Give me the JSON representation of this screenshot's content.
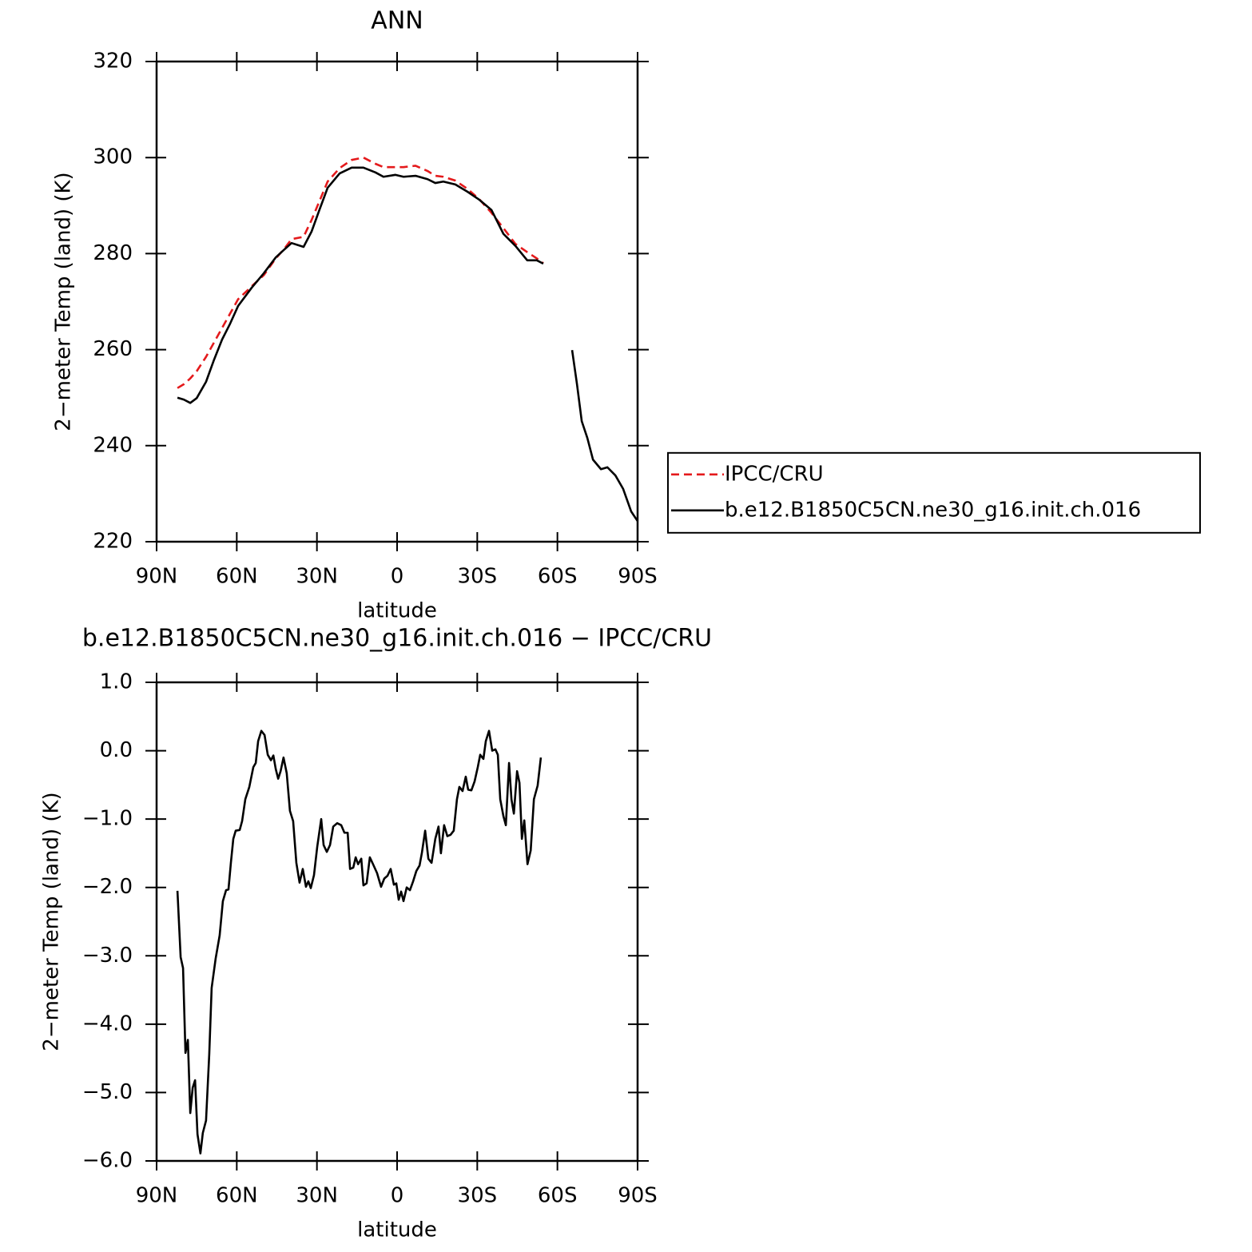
{
  "chart_data": [
    {
      "type": "line",
      "title": "ANN",
      "xlabel": "latitude",
      "ylabel": "2−meter Temp (land) (K)",
      "x": [
        82.2,
        79.8,
        77.4,
        75.0,
        71.5,
        68.5,
        65.5,
        62.5,
        59.5,
        54.4,
        49.9,
        45.4,
        42.5,
        39.5,
        35.0,
        32.0,
        29.0,
        26.0,
        21.5,
        17.0,
        12.6,
        8.1,
        5.1,
        0.6,
        -2.4,
        -6.9,
        -11.4,
        -14.3,
        -17.3,
        -21.8,
        -26.3,
        -30.8,
        -35.3,
        -39.8,
        -44.3,
        -48.7,
        -52.3,
        -54.7,
        -60.7,
        -65.5,
        -67.3,
        -69.1,
        -71.2,
        -73.3,
        -76.3,
        -78.7,
        -81.7,
        -84.6,
        -87.6,
        -90
      ],
      "series": [
        {
          "name": "IPCC/CRU",
          "color": "#e41a1c",
          "dashed": true,
          "values": [
            252.0,
            252.8,
            254.0,
            255.5,
            258.5,
            261.5,
            264.5,
            267.5,
            270.5,
            273.2,
            275.5,
            279.0,
            280.8,
            283.0,
            283.5,
            287.0,
            291.0,
            295.0,
            297.8,
            299.5,
            300.0,
            298.7,
            298.0,
            298.0,
            298.0,
            298.3,
            297.2,
            296.2,
            296.0,
            295.2,
            293.5,
            291.3,
            288.5,
            285.3,
            282.0,
            280.3,
            279.0,
            278.0,
            null,
            null,
            null,
            null,
            null,
            null,
            null,
            null,
            null,
            null,
            null,
            null
          ]
        },
        {
          "name": "b.e12.B1850C5CN.ne30_g16.init.ch.016",
          "color": "#000000",
          "dashed": false,
          "values": [
            250.0,
            249.6,
            248.9,
            249.9,
            253.3,
            257.9,
            262.1,
            265.4,
            269.1,
            272.9,
            275.9,
            279.2,
            280.7,
            282.2,
            281.4,
            284.6,
            289.2,
            293.7,
            296.7,
            297.9,
            297.9,
            296.9,
            296.0,
            296.4,
            296.0,
            296.2,
            295.5,
            294.7,
            295.0,
            294.4,
            292.9,
            291.2,
            289.1,
            284.1,
            281.6,
            278.6,
            278.6,
            277.9,
            null,
            259.9,
            252.9,
            245.1,
            241.6,
            237.1,
            235.1,
            235.5,
            233.8,
            231.0,
            226.3,
            224.3
          ]
        }
      ],
      "xlim": [
        90,
        -90
      ],
      "xticks": [
        {
          "value": 90,
          "label": "90N"
        },
        {
          "value": 60,
          "label": "60N"
        },
        {
          "value": 30,
          "label": "30N"
        },
        0,
        {
          "value": -30,
          "label": "30S"
        },
        {
          "value": -60,
          "label": "60S"
        },
        {
          "value": -90,
          "label": "90S"
        }
      ],
      "ylim": [
        220,
        320
      ],
      "yticks": [
        220,
        240,
        260,
        280,
        300,
        320
      ],
      "legend": "right"
    },
    {
      "type": "line",
      "title": "b.e12.B1850C5CN.ne30_g16.init.ch.016 − IPCC/CRU",
      "xlabel": "latitude",
      "ylabel": "2−meter Temp (land) (K)",
      "x": [
        82.2,
        81.0,
        80.1,
        79.2,
        78.3,
        77.4,
        76.5,
        75.6,
        74.7,
        73.6,
        72.7,
        71.5,
        70.3,
        69.4,
        67.9,
        66.4,
        65.2,
        64.0,
        63.1,
        62.2,
        61.3,
        60.4,
        58.9,
        58.0,
        56.8,
        55.3,
        53.8,
        52.9,
        52.0,
        50.8,
        49.6,
        48.4,
        47.2,
        46.3,
        45.4,
        44.5,
        43.6,
        42.5,
        41.3,
        40.1,
        38.9,
        37.7,
        36.5,
        35.3,
        34.1,
        33.2,
        32.3,
        31.1,
        29.9,
        28.4,
        27.5,
        26.3,
        25.1,
        23.9,
        22.4,
        20.9,
        19.7,
        18.5,
        17.6,
        16.4,
        15.5,
        14.6,
        13.4,
        12.6,
        11.4,
        10.2,
        9.0,
        7.5,
        6.0,
        4.8,
        3.6,
        2.4,
        1.2,
        0.3,
        -0.6,
        -1.5,
        -2.4,
        -3.6,
        -4.8,
        -6.0,
        -7.2,
        -8.4,
        -9.3,
        -10.5,
        -11.7,
        -12.9,
        -14.3,
        -15.5,
        -16.4,
        -17.6,
        -18.8,
        -20.0,
        -21.2,
        -22.4,
        -23.3,
        -24.5,
        -25.7,
        -26.6,
        -27.8,
        -29.0,
        -30.2,
        -31.1,
        -32.3,
        -33.2,
        -34.4,
        -35.6,
        -36.8,
        -37.7,
        -38.6,
        -39.8,
        -40.7,
        -41.9,
        -42.8,
        -43.7,
        -44.9,
        -45.8,
        -46.7,
        -47.6,
        -48.8,
        -50.0,
        -51.2,
        -52.6,
        -53.8
      ],
      "series": [
        {
          "color": "#000000",
          "dashed": false,
          "values": [
            -2.05,
            -3.02,
            -3.18,
            -4.42,
            -4.23,
            -5.3,
            -4.93,
            -4.82,
            -5.61,
            -5.89,
            -5.59,
            -5.41,
            -4.44,
            -3.47,
            -3.04,
            -2.7,
            -2.2,
            -2.04,
            -2.03,
            -1.64,
            -1.29,
            -1.17,
            -1.16,
            -1.03,
            -0.71,
            -0.53,
            -0.24,
            -0.18,
            0.14,
            0.29,
            0.23,
            -0.06,
            -0.14,
            -0.07,
            -0.27,
            -0.41,
            -0.3,
            -0.1,
            -0.33,
            -0.88,
            -1.03,
            -1.64,
            -1.93,
            -1.73,
            -1.99,
            -1.91,
            -2.01,
            -1.82,
            -1.41,
            -1.0,
            -1.38,
            -1.48,
            -1.38,
            -1.11,
            -1.06,
            -1.09,
            -1.2,
            -1.2,
            -1.73,
            -1.71,
            -1.56,
            -1.66,
            -1.58,
            -1.97,
            -1.94,
            -1.56,
            -1.66,
            -1.79,
            -1.99,
            -1.87,
            -1.83,
            -1.73,
            -1.96,
            -1.94,
            -2.18,
            -2.06,
            -2.2,
            -2.0,
            -2.04,
            -1.91,
            -1.76,
            -1.68,
            -1.49,
            -1.17,
            -1.58,
            -1.64,
            -1.29,
            -1.11,
            -1.5,
            -1.09,
            -1.25,
            -1.23,
            -1.17,
            -0.71,
            -0.53,
            -0.59,
            -0.38,
            -0.57,
            -0.58,
            -0.45,
            -0.24,
            -0.06,
            -0.12,
            0.14,
            0.29,
            0.0,
            0.02,
            -0.06,
            -0.71,
            -0.96,
            -1.09,
            -0.18,
            -0.71,
            -0.92,
            -0.3,
            -0.47,
            -1.29,
            -1.02,
            -1.66,
            -1.46,
            -0.71,
            -0.51,
            -0.1
          ]
        }
      ],
      "xlim": [
        90,
        -90
      ],
      "xticks": [
        {
          "value": 90,
          "label": "90N"
        },
        {
          "value": 60,
          "label": "60N"
        },
        {
          "value": 30,
          "label": "30N"
        },
        0,
        {
          "value": -30,
          "label": "30S"
        },
        {
          "value": -60,
          "label": "60S"
        },
        {
          "value": -90,
          "label": "90S"
        }
      ],
      "ylim": [
        -6.0,
        1.0
      ],
      "yticks": [
        {
          "value": -6.0,
          "label": "−6.0"
        },
        {
          "value": -5.0,
          "label": "−5.0"
        },
        {
          "value": -4.0,
          "label": "−4.0"
        },
        {
          "value": -3.0,
          "label": "−3.0"
        },
        {
          "value": -2.0,
          "label": "−2.0"
        },
        {
          "value": -1.0,
          "label": "−1.0"
        },
        {
          "value": 0.0,
          "label": "0.0"
        },
        {
          "value": 1.0,
          "label": "1.0"
        }
      ]
    }
  ]
}
